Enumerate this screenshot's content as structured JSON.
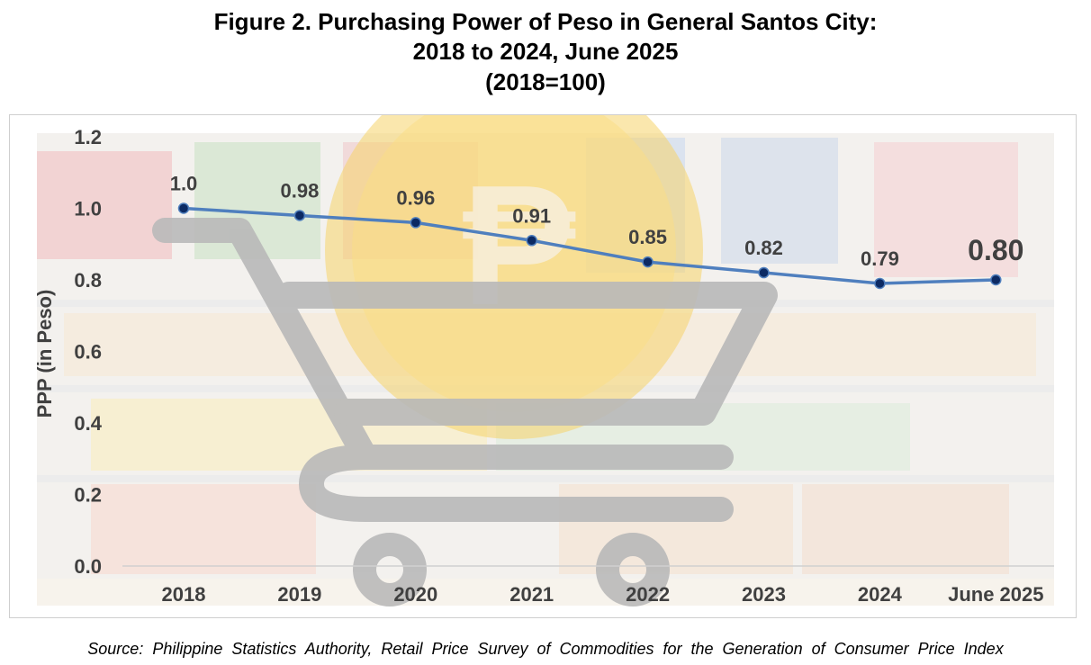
{
  "title_lines": [
    "Figure 2. Purchasing Power of Peso in General Santos City:",
    "2018 to 2024, June 2025",
    "(2018=100)"
  ],
  "source_note": "Source: Philippine Statistics Authority, Retail Price Survey of Commodities for the Generation of Consumer Price Index",
  "background_graphic": {
    "icons": [
      "shopping-cart-icon",
      "peso-coin-icon"
    ],
    "coin_symbol": "₱"
  },
  "colors": {
    "line": "#4f7fbe",
    "marker_fill": "#0c2a63",
    "axis_text": "#404040",
    "cart": "#b9b9b9",
    "coin": "#f6d36a"
  },
  "chart_data": {
    "type": "line",
    "title": "Figure 2. Purchasing Power of Peso in General Santos City: 2018 to 2024, June 2025 (2018=100)",
    "xlabel": "",
    "ylabel": "PPP  (in Peso)",
    "ylim": [
      0,
      1.2
    ],
    "yticks": [
      "0.0",
      "0.2",
      "0.4",
      "0.6",
      "0.8",
      "1.0",
      "1.2"
    ],
    "categories": [
      "2018",
      "2019",
      "2020",
      "2021",
      "2022",
      "2023",
      "2024",
      "June 2025"
    ],
    "values": [
      1.0,
      0.98,
      0.96,
      0.91,
      0.85,
      0.82,
      0.79,
      0.8
    ],
    "data_labels": [
      "1.0",
      "0.98",
      "0.96",
      "0.91",
      "0.85",
      "0.82",
      "0.79",
      "0.80"
    ],
    "emphasized_label": "0.80",
    "grid": false,
    "legend": "none"
  }
}
